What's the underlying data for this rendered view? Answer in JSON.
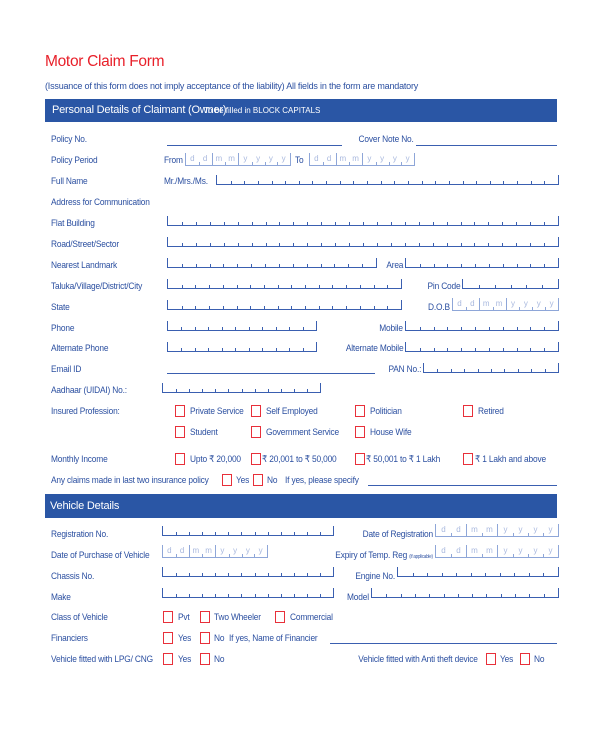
{
  "title": "Motor Claim Form",
  "subtitle": "(Issuance of this form does not imply acceptance of the liability) All fields in the form are mandatory",
  "date_placeholder": [
    "d",
    "d",
    "m",
    "m",
    "y",
    "y",
    "y",
    "y"
  ],
  "personal": {
    "header": "Personal Details of Claimant (Owner)",
    "header_note": "To be filled in BLOCK CAPITALS",
    "policy_no": "Policy No.",
    "cover_note_no": "Cover Note No.",
    "policy_period": "Policy Period",
    "from": "From",
    "to": "To",
    "full_name": "Full Name",
    "salutation": "Mr./Mrs./Ms.",
    "address": "Address for Communication",
    "flat": "Flat Building",
    "road": "Road/Street/Sector",
    "landmark": "Nearest Landmark",
    "area": "Area",
    "taluka": "Taluka/Village/District/City",
    "pin_code": "Pin Code",
    "state": "State",
    "dob": "D.O.B",
    "phone": "Phone",
    "mobile": "Mobile",
    "alt_phone": "Alternate Phone",
    "alt_mobile": "Alternate Mobile",
    "email": "Email ID",
    "pan": "PAN No.:",
    "aadhaar": "Aadhaar (UIDAI) No.:",
    "profession": "Insured Profession:",
    "profession_options": [
      "Private Service",
      "Self Employed",
      "Politician",
      "Retired",
      "Student",
      "Government Service",
      "House Wife"
    ],
    "income": "Monthly Income",
    "income_options": [
      "Upto ₹ 20,000",
      "₹ 20,001 to ₹ 50,000",
      "₹ 50,001 to ₹ 1 Lakh",
      "₹ 1 Lakh and above"
    ],
    "claims": "Any claims made in last two insurance policy",
    "yes": "Yes",
    "no": "No",
    "if_yes": "If yes, please specify"
  },
  "vehicle": {
    "header": "Vehicle Details",
    "registration_no": "Registration No.",
    "date_of_registration": "Date of Registration",
    "date_of_purchase": "Date of Purchase of Vehicle",
    "expiry_temp_reg": "Expiry of Temp. Reg",
    "if_applicable": "(if applicable)",
    "chassis_no": "Chassis No.",
    "engine_no": "Engine No.",
    "make": "Make",
    "model": "Model",
    "class": "Class of Vehicle",
    "class_options": [
      "Pvt",
      "Two Wheeler",
      "Commercial"
    ],
    "financiers": "Financiers",
    "yes": "Yes",
    "no": "No",
    "financier_name": "If yes, Name of Financier",
    "lpg_cng": "Vehicle fitted with LPG/ CNG",
    "anti_theft": "Vehicle fitted with Anti theft device"
  },
  "colors": {
    "accent": "#2a56a5",
    "title": "#e8202a",
    "checkbox": "#e8303a"
  }
}
